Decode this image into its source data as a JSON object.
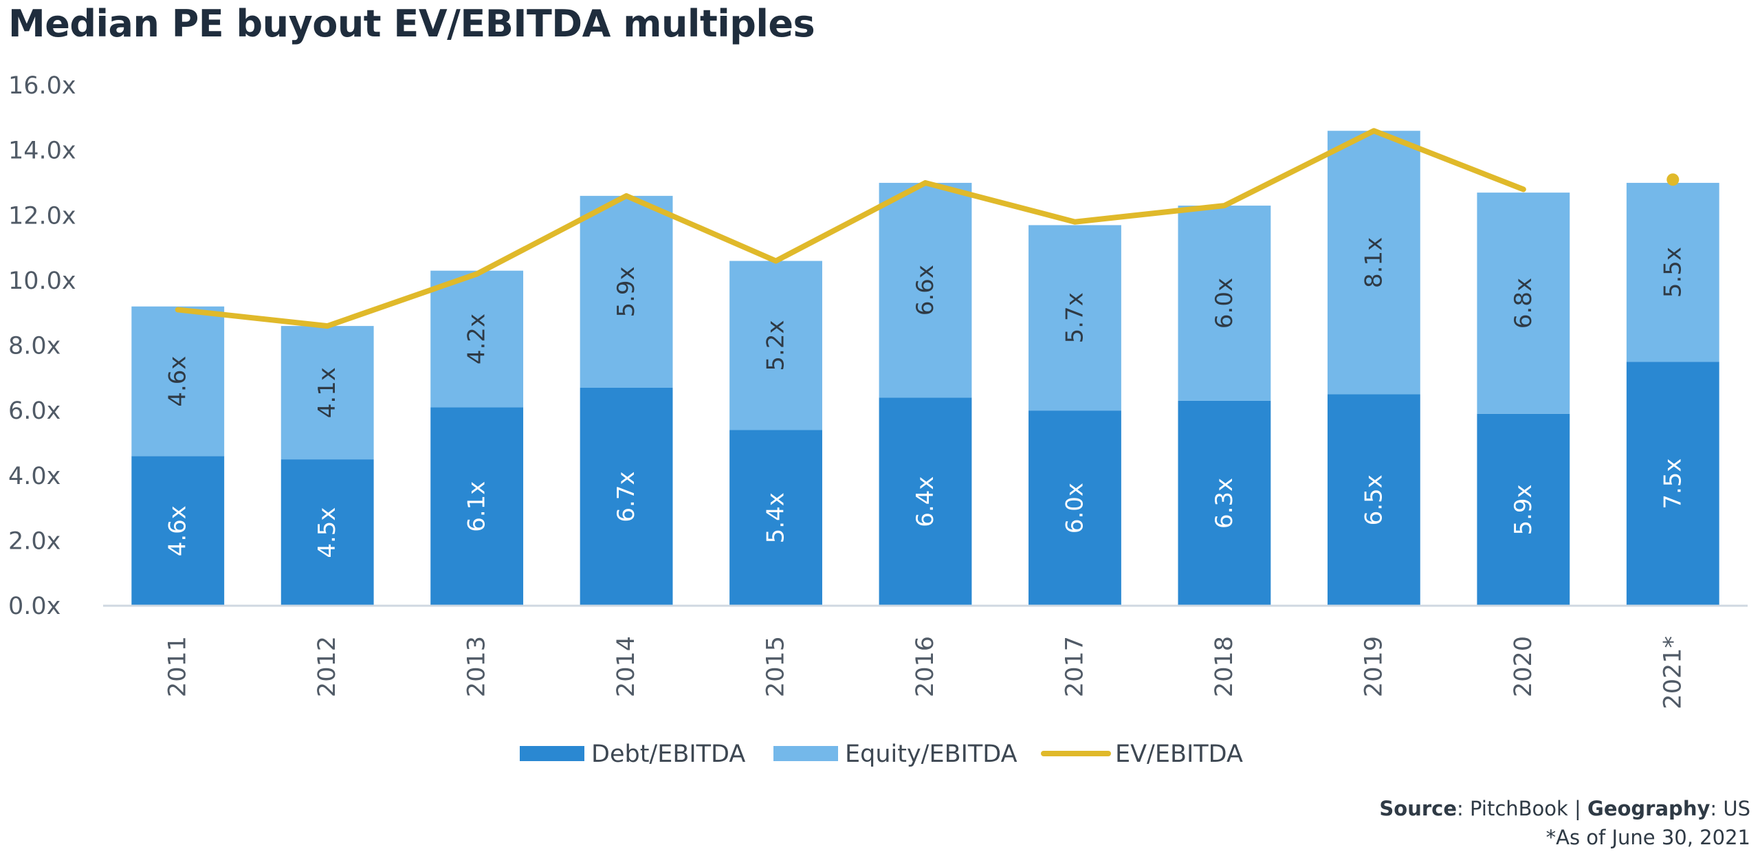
{
  "chart_data": {
    "type": "bar",
    "stacked": true,
    "title": "Median PE buyout EV/EBITDA multiples",
    "categories": [
      "2011",
      "2012",
      "2013",
      "2014",
      "2015",
      "2016",
      "2017",
      "2018",
      "2019",
      "2020",
      "2021*"
    ],
    "series": [
      {
        "name": "Debt/EBITDA",
        "type": "bar",
        "color": "#2a88d2",
        "values": [
          4.6,
          4.5,
          6.1,
          6.7,
          5.4,
          6.4,
          6.0,
          6.3,
          6.5,
          5.9,
          7.5
        ],
        "labels": [
          "4.6x",
          "4.5x",
          "6.1x",
          "6.7x",
          "5.4x",
          "6.4x",
          "6.0x",
          "6.3x",
          "6.5x",
          "5.9x",
          "7.5x"
        ]
      },
      {
        "name": "Equity/EBITDA",
        "type": "bar",
        "color": "#74b8ea",
        "values": [
          4.6,
          4.1,
          4.2,
          5.9,
          5.2,
          6.6,
          5.7,
          6.0,
          8.1,
          6.8,
          5.5
        ],
        "labels": [
          "4.6x",
          "4.1x",
          "4.2x",
          "5.9x",
          "5.2x",
          "6.6x",
          "5.7x",
          "6.0x",
          "8.1x",
          "6.8x",
          "5.5x"
        ]
      },
      {
        "name": "EV/EBITDA",
        "type": "line",
        "color": "#e0b92a",
        "values": [
          9.1,
          8.6,
          10.2,
          12.6,
          10.6,
          13.0,
          11.8,
          12.3,
          14.6,
          12.8,
          13.1
        ]
      }
    ],
    "ylim": [
      0,
      16
    ],
    "yticks": [
      "0.0x",
      "2.0x",
      "4.0x",
      "6.0x",
      "8.0x",
      "10.0x",
      "12.0x",
      "14.0x",
      "16.0x"
    ],
    "grid": false,
    "legend": "bottom",
    "xlabel": "",
    "ylabel": ""
  },
  "footer": {
    "source_label": "Source",
    "source_value": ": PitchBook | ",
    "geography_label": "Geography",
    "geography_value": ": US",
    "note": "*As of June 30, 2021"
  }
}
